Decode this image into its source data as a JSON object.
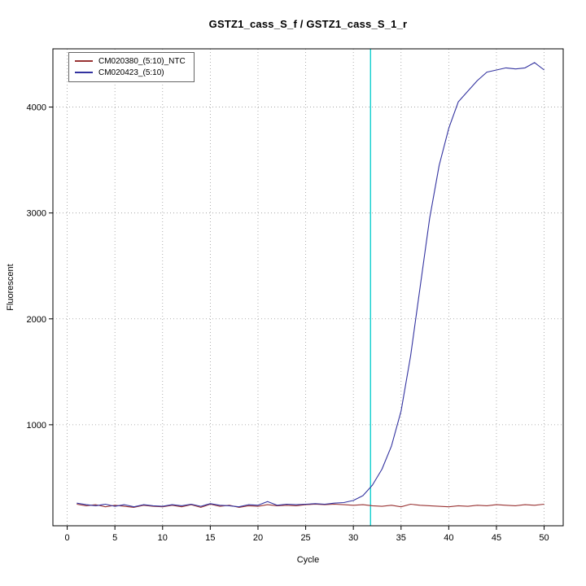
{
  "page": {
    "background": "#ffffff"
  },
  "chart_data": {
    "type": "line",
    "title": "GSTZ1_cass_S_f / GSTZ1_cass_S_1_r",
    "xlabel": "Cycle",
    "ylabel": "Fluorescent",
    "xlim": [
      -1.5,
      52
    ],
    "ylim": [
      46,
      4550
    ],
    "x_ticks": [
      0,
      5,
      10,
      15,
      20,
      25,
      30,
      35,
      40,
      45,
      50
    ],
    "y_ticks": [
      1000,
      2000,
      3000,
      4000
    ],
    "grid": true,
    "legend_position": "top-left",
    "threshold_line": {
      "cycle": 31.8,
      "color": "#00CCCC"
    },
    "x": [
      1,
      2,
      3,
      4,
      5,
      6,
      7,
      8,
      9,
      10,
      11,
      12,
      13,
      14,
      15,
      16,
      17,
      18,
      19,
      20,
      21,
      22,
      23,
      24,
      25,
      26,
      27,
      28,
      29,
      30,
      31,
      32,
      33,
      34,
      35,
      36,
      37,
      38,
      39,
      40,
      41,
      42,
      43,
      44,
      45,
      46,
      47,
      48,
      49,
      50
    ],
    "series": [
      {
        "name": "CM020380_(5:10)_NTC",
        "color": "#993333",
        "values": [
          250,
          235,
          245,
          225,
          240,
          230,
          220,
          240,
          230,
          225,
          240,
          225,
          245,
          220,
          250,
          230,
          240,
          220,
          235,
          230,
          245,
          235,
          240,
          235,
          245,
          250,
          245,
          250,
          245,
          240,
          245,
          235,
          230,
          240,
          225,
          250,
          240,
          235,
          230,
          225,
          235,
          230,
          240,
          235,
          245,
          240,
          235,
          245,
          240,
          250
        ]
      },
      {
        "name": "CM020423_(5:10)",
        "color": "#3333A0",
        "values": [
          260,
          245,
          235,
          250,
          230,
          245,
          225,
          245,
          235,
          230,
          245,
          235,
          250,
          230,
          255,
          240,
          235,
          225,
          245,
          240,
          275,
          240,
          250,
          245,
          250,
          255,
          250,
          260,
          265,
          285,
          330,
          430,
          580,
          800,
          1130,
          1650,
          2300,
          2950,
          3450,
          3800,
          4050,
          4150,
          4250,
          4330,
          4350,
          4370,
          4360,
          4370,
          4420,
          4350
        ]
      }
    ]
  }
}
